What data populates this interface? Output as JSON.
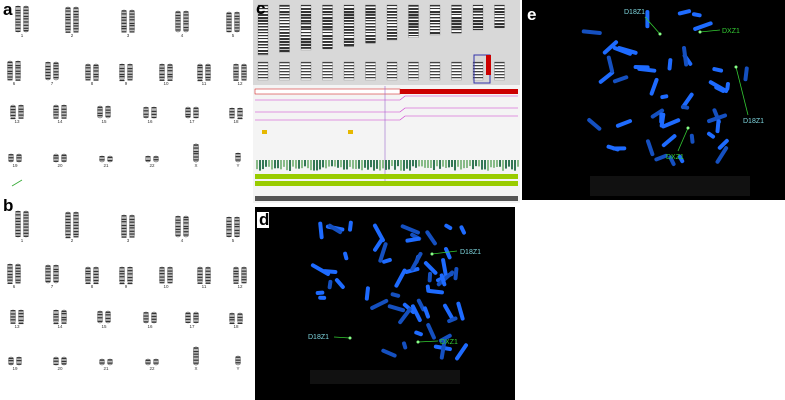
{
  "panels": {
    "a": {
      "label": "a",
      "chromosome_labels": [
        "1",
        "2",
        "3",
        "4",
        "5",
        "6",
        "7",
        "8",
        "9",
        "10",
        "11",
        "12",
        "13",
        "14",
        "15",
        "16",
        "17",
        "18",
        "19",
        "20",
        "21",
        "22",
        "X",
        "Y"
      ]
    },
    "b": {
      "label": "b",
      "chromosome_labels": [
        "1",
        "2",
        "3",
        "4",
        "5",
        "6",
        "7",
        "8",
        "9",
        "10",
        "11",
        "12",
        "13",
        "14",
        "15",
        "16",
        "17",
        "18",
        "19",
        "20",
        "21",
        "22",
        "X",
        "Y"
      ]
    },
    "c": {
      "label": "c"
    },
    "d": {
      "label": "d",
      "probe_labels": [
        "D18Z1",
        "D18Z1",
        "DXZ1"
      ]
    },
    "e": {
      "label": "e",
      "probe_labels": [
        "D18Z1",
        "DXZ1",
        "D18Z1",
        "DXZ1"
      ]
    }
  }
}
